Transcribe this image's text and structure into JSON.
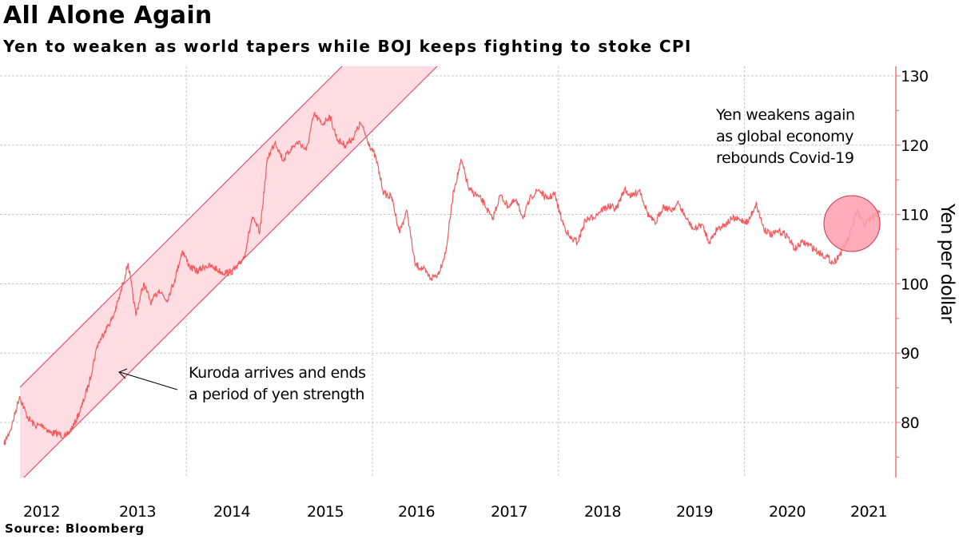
{
  "title": "All Alone Again",
  "subtitle": "Yen to weaken as world tapers while BOJ keeps fighting to stoke CPI",
  "source": "Source: Bloomberg",
  "colors": {
    "line": "#f25a5e",
    "band_fill": "#ffdde2",
    "band_stroke": "#e8385a",
    "circle_fill": "#ff9fae",
    "circle_stroke": "#d8304a",
    "axis": "#f07070",
    "grid": "#c8c8c8"
  },
  "chart_data": {
    "type": "line",
    "title": "All Alone Again",
    "ylabel": "Yen per dollar",
    "xlabel": "",
    "ylim": [
      71.2,
      131
    ],
    "xlim": [
      "2012-01",
      "2021-07"
    ],
    "y_axis_position": "right",
    "grid": true,
    "yticks": [
      80,
      90,
      100,
      110,
      120,
      130
    ],
    "xtick_labels": [
      "2012",
      "2013",
      "2014",
      "2015",
      "2016",
      "2017",
      "2018",
      "2019",
      "2020",
      "2021"
    ],
    "annotations": [
      {
        "lines": [
          "Kuroda arrives and ends",
          "a period of yen strength"
        ]
      },
      {
        "lines": [
          "Yen weakens again",
          "as global economy",
          "rebounds Covid-19"
        ]
      }
    ],
    "series": [
      {
        "x": [
          "2012-01",
          "2012-02",
          "2012-03",
          "2012-04",
          "2012-05",
          "2012-06",
          "2012-07",
          "2012-08",
          "2012-09",
          "2012-10",
          "2012-11",
          "2012-12",
          "2013-01",
          "2013-02",
          "2013-03",
          "2013-04",
          "2013-05",
          "2013-06",
          "2013-07",
          "2013-08",
          "2013-09",
          "2013-10",
          "2013-11",
          "2013-12",
          "2014-01",
          "2014-02",
          "2014-03",
          "2014-04",
          "2014-05",
          "2014-06",
          "2014-07",
          "2014-08",
          "2014-09",
          "2014-10",
          "2014-11",
          "2014-12",
          "2015-01",
          "2015-02",
          "2015-03",
          "2015-04",
          "2015-05",
          "2015-06",
          "2015-07",
          "2015-08",
          "2015-09",
          "2015-10",
          "2015-11",
          "2015-12",
          "2016-01",
          "2016-02",
          "2016-03",
          "2016-04",
          "2016-05",
          "2016-06",
          "2016-07",
          "2016-08",
          "2016-09",
          "2016-10",
          "2016-11",
          "2016-12",
          "2017-01",
          "2017-02",
          "2017-03",
          "2017-04",
          "2017-05",
          "2017-06",
          "2017-07",
          "2017-08",
          "2017-09",
          "2017-10",
          "2017-11",
          "2017-12",
          "2018-01",
          "2018-02",
          "2018-03",
          "2018-04",
          "2018-05",
          "2018-06",
          "2018-07",
          "2018-08",
          "2018-09",
          "2018-10",
          "2018-11",
          "2018-12",
          "2019-01",
          "2019-02",
          "2019-03",
          "2019-04",
          "2019-05",
          "2019-06",
          "2019-07",
          "2019-08",
          "2019-09",
          "2019-10",
          "2019-11",
          "2019-12",
          "2020-01",
          "2020-02",
          "2020-03",
          "2020-04",
          "2020-05",
          "2020-06",
          "2020-07",
          "2020-08",
          "2020-09",
          "2020-10",
          "2020-11",
          "2020-12",
          "2021-01",
          "2021-02",
          "2021-03",
          "2021-04",
          "2021-05",
          "2021-06"
        ],
        "values": [
          76.8,
          79.5,
          83.8,
          80.8,
          79.5,
          79.6,
          78.5,
          78.4,
          77.9,
          79.6,
          82.2,
          85.8,
          91.0,
          93.2,
          95.0,
          98.5,
          103.0,
          95.5,
          100.0,
          97.2,
          99.2,
          97.6,
          100.5,
          104.8,
          102.4,
          101.8,
          102.6,
          102.4,
          101.7,
          101.6,
          102.2,
          104.0,
          109.5,
          107.5,
          118.2,
          120.5,
          117.8,
          119.5,
          120.5,
          119.2,
          124.5,
          123.0,
          124.2,
          120.8,
          120.0,
          121.0,
          123.2,
          120.5,
          118.0,
          113.0,
          112.5,
          107.5,
          110.5,
          102.8,
          102.2,
          100.8,
          101.4,
          104.6,
          113.5,
          117.8,
          113.5,
          112.8,
          111.5,
          109.2,
          112.8,
          111.2,
          112.0,
          109.6,
          112.6,
          113.6,
          112.2,
          113.0,
          109.0,
          106.6,
          106.0,
          109.2,
          109.6,
          110.6,
          111.2,
          110.8,
          113.6,
          112.6,
          113.6,
          110.2,
          108.6,
          111.2,
          110.6,
          111.6,
          109.4,
          107.8,
          108.6,
          106.0,
          108.0,
          108.6,
          109.4,
          109.2,
          108.9,
          111.6,
          108.0,
          107.0,
          107.6,
          107.0,
          105.0,
          106.0,
          105.5,
          104.6,
          104.0,
          103.0,
          104.6,
          106.6,
          110.4,
          108.6,
          109.6,
          110.2
        ]
      }
    ]
  }
}
